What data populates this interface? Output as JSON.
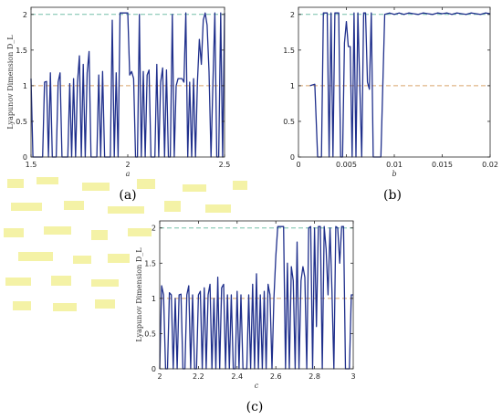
{
  "colors": {
    "series": "#1f2f8c",
    "ref_upper": "#73bfa8",
    "ref_lower": "#d9a46b",
    "axes": "#262626",
    "artifact": "#f4f2a6"
  },
  "chart_data": [
    {
      "panel_label": "(a)",
      "type": "line",
      "xlabel": "a",
      "ylabel": "Lyapunov Dimension D_L",
      "xlim": [
        1.5,
        2.5
      ],
      "ylim": [
        0,
        2.1
      ],
      "xticks": [
        1.5,
        2,
        2.5
      ],
      "xtick_labels": [
        "1.5",
        "2",
        "2.5"
      ],
      "yticks": [
        0,
        0.5,
        1,
        1.5,
        2
      ],
      "ytick_labels": [
        "0",
        "0.5",
        "1",
        "1.5",
        "2"
      ],
      "ref_lines": [
        2,
        1
      ],
      "grid": false,
      "x": [
        1.5,
        1.51,
        1.52,
        1.53,
        1.54,
        1.55,
        1.56,
        1.57,
        1.58,
        1.59,
        1.6,
        1.61,
        1.62,
        1.63,
        1.64,
        1.65,
        1.66,
        1.67,
        1.68,
        1.69,
        1.7,
        1.71,
        1.72,
        1.73,
        1.74,
        1.75,
        1.76,
        1.77,
        1.78,
        1.79,
        1.8,
        1.81,
        1.82,
        1.83,
        1.84,
        1.85,
        1.86,
        1.87,
        1.88,
        1.89,
        1.9,
        1.91,
        1.92,
        1.93,
        1.94,
        1.95,
        1.96,
        1.97,
        1.98,
        1.99,
        2.0,
        2.01,
        2.02,
        2.03,
        2.04,
        2.05,
        2.06,
        2.07,
        2.08,
        2.09,
        2.1,
        2.11,
        2.12,
        2.13,
        2.14,
        2.15,
        2.16,
        2.17,
        2.18,
        2.19,
        2.2,
        2.21,
        2.22,
        2.23,
        2.24,
        2.25,
        2.26,
        2.27,
        2.28,
        2.29,
        2.3,
        2.31,
        2.32,
        2.33,
        2.34,
        2.35,
        2.36,
        2.37,
        2.38,
        2.39,
        2.4,
        2.41,
        2.42,
        2.43,
        2.44,
        2.45,
        2.46,
        2.47,
        2.48,
        2.49,
        2.5
      ],
      "y": [
        1.1,
        0,
        0,
        0,
        0,
        0,
        0,
        1.05,
        1.06,
        0,
        1.18,
        0,
        0,
        0,
        1.05,
        1.18,
        0,
        0,
        0,
        0,
        1.03,
        0,
        1.1,
        0,
        1.05,
        1.42,
        0,
        1.3,
        0,
        1.18,
        1.48,
        0,
        0,
        0,
        0,
        1.15,
        0,
        1.2,
        0,
        0,
        0,
        0,
        1.92,
        0,
        1.18,
        0,
        2.02,
        2.02,
        2.02,
        2.02,
        2.02,
        1.15,
        1.2,
        1.1,
        0,
        0,
        2.0,
        0,
        1.2,
        0,
        1.15,
        1.22,
        0,
        0,
        0,
        1.3,
        0,
        1.05,
        1.25,
        0,
        1.22,
        0,
        0,
        2.0,
        0,
        1.0,
        1.1,
        1.1,
        1.1,
        1.05,
        2.02,
        0,
        1.05,
        0,
        1.1,
        0,
        1.05,
        1.65,
        1.3,
        1.92,
        2.02,
        1.85,
        1.2,
        0,
        1.05,
        2.02,
        0,
        0,
        2.02,
        0,
        2.02
      ]
    },
    {
      "panel_label": "(b)",
      "type": "line",
      "xlabel": "b",
      "ylabel": "",
      "xlim": [
        0,
        0.02
      ],
      "ylim": [
        0,
        2.1
      ],
      "xticks": [
        0,
        0.005,
        0.01,
        0.015,
        0.02
      ],
      "xtick_labels": [
        "0",
        "0.005",
        "0.01",
        "0.015",
        "0.02"
      ],
      "yticks": [
        0,
        0.5,
        1,
        1.5,
        2
      ],
      "ytick_labels": [
        "0",
        "0.5",
        "1",
        "1.5",
        "2"
      ],
      "ref_lines": [
        2,
        1
      ],
      "grid": false,
      "x": [
        0.0012,
        0.0017,
        0.002,
        0.0024,
        0.0026,
        0.0028,
        0.003,
        0.0032,
        0.0034,
        0.0036,
        0.0038,
        0.004,
        0.0042,
        0.0044,
        0.0046,
        0.0048,
        0.005,
        0.0052,
        0.0054,
        0.0056,
        0.0058,
        0.006,
        0.0062,
        0.0064,
        0.0066,
        0.0068,
        0.007,
        0.0072,
        0.0074,
        0.0076,
        0.0078,
        0.008,
        0.0082,
        0.0084,
        0.0086,
        0.0088,
        0.009,
        0.0095,
        0.01,
        0.0105,
        0.011,
        0.0115,
        0.012,
        0.0125,
        0.013,
        0.0135,
        0.014,
        0.0145,
        0.015,
        0.0155,
        0.016,
        0.0165,
        0.017,
        0.0175,
        0.018,
        0.0185,
        0.019,
        0.0195,
        0.02
      ],
      "y": [
        1.0,
        1.02,
        0,
        0,
        2.02,
        2.02,
        2.02,
        0,
        2.02,
        0,
        2.02,
        2.02,
        2.02,
        0,
        0,
        1.6,
        1.9,
        1.55,
        1.55,
        0,
        2.02,
        0,
        2.02,
        1.0,
        0,
        2.02,
        2.02,
        1.05,
        0.95,
        2.02,
        0,
        0,
        0,
        0,
        0,
        1.0,
        2.0,
        2.02,
        2.0,
        2.02,
        2.0,
        2.02,
        2.01,
        2.0,
        2.02,
        2.01,
        2.0,
        2.02,
        2.01,
        2.02,
        2.0,
        2.02,
        2.01,
        2.0,
        2.02,
        2.01,
        2.0,
        2.02,
        2.01
      ]
    },
    {
      "panel_label": "(c)",
      "type": "line",
      "xlabel": "c",
      "ylabel": "Lyapunov Dimension D_L",
      "xlim": [
        2,
        3
      ],
      "ylim": [
        0,
        2.1
      ],
      "xticks": [
        2,
        2.2,
        2.4,
        2.6,
        2.8,
        3
      ],
      "xtick_labels": [
        "2",
        "2.2",
        "2.4",
        "2.6",
        "2.8",
        "3"
      ],
      "yticks": [
        0,
        0.5,
        1,
        1.5,
        2
      ],
      "ytick_labels": [
        "0",
        "0.5",
        "1",
        "1.5",
        "2"
      ],
      "ref_lines": [
        2,
        1
      ],
      "grid": false,
      "x": [
        2.0,
        2.01,
        2.02,
        2.03,
        2.04,
        2.05,
        2.06,
        2.07,
        2.08,
        2.09,
        2.1,
        2.11,
        2.12,
        2.13,
        2.14,
        2.15,
        2.16,
        2.17,
        2.18,
        2.19,
        2.2,
        2.21,
        2.22,
        2.23,
        2.24,
        2.25,
        2.26,
        2.27,
        2.28,
        2.29,
        2.3,
        2.31,
        2.32,
        2.33,
        2.34,
        2.35,
        2.36,
        2.37,
        2.38,
        2.39,
        2.4,
        2.41,
        2.42,
        2.43,
        2.44,
        2.45,
        2.46,
        2.47,
        2.48,
        2.49,
        2.5,
        2.51,
        2.52,
        2.53,
        2.54,
        2.55,
        2.56,
        2.57,
        2.58,
        2.59,
        2.6,
        2.61,
        2.62,
        2.63,
        2.64,
        2.65,
        2.66,
        2.67,
        2.68,
        2.69,
        2.7,
        2.71,
        2.72,
        2.73,
        2.74,
        2.75,
        2.76,
        2.77,
        2.78,
        2.79,
        2.8,
        2.81,
        2.82,
        2.83,
        2.84,
        2.85,
        2.86,
        2.87,
        2.88,
        2.89,
        2.9,
        2.91,
        2.92,
        2.93,
        2.94,
        2.95,
        2.96,
        2.97,
        2.98,
        2.99,
        3.0
      ],
      "y": [
        0,
        1.18,
        1.05,
        0,
        0,
        1.08,
        1.05,
        0,
        1.0,
        0,
        1.05,
        1.06,
        0,
        0,
        1.05,
        1.18,
        0,
        1.05,
        0,
        0,
        1.05,
        1.1,
        0,
        1.15,
        0,
        1.05,
        1.2,
        0,
        1.0,
        0,
        1.3,
        0,
        1.15,
        1.2,
        0,
        1.05,
        0,
        1.05,
        0,
        0,
        1.1,
        0,
        1.05,
        0,
        0,
        0,
        1.05,
        0,
        1.2,
        0,
        1.35,
        0,
        1.05,
        0,
        1.1,
        0,
        1.2,
        1.05,
        0,
        1.0,
        1.6,
        2.02,
        2.02,
        2.02,
        2.02,
        0,
        1.5,
        0,
        1.45,
        1.25,
        0,
        1.8,
        0,
        1.25,
        1.45,
        1.3,
        0,
        2.0,
        2.02,
        0,
        2.0,
        0.6,
        2.02,
        2.02,
        0,
        2.02,
        1.7,
        1.05,
        2.0,
        1.1,
        0,
        2.02,
        2.0,
        1.5,
        2.02,
        2.02,
        0,
        0,
        0,
        1.05,
        1.05
      ]
    }
  ]
}
